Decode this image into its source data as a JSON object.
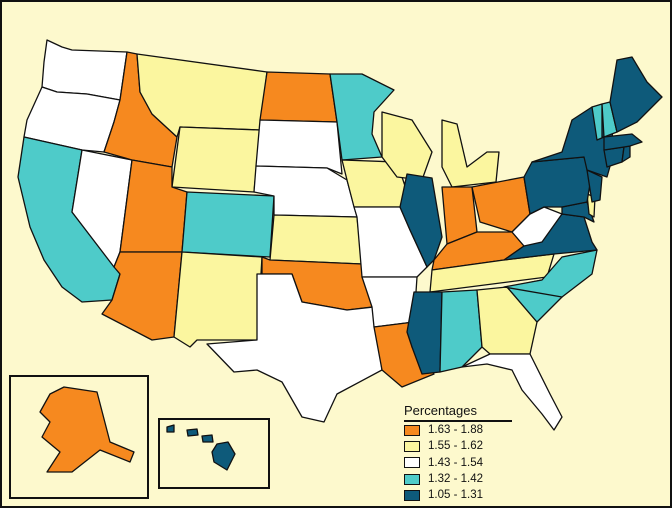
{
  "colors": {
    "orange": "#f6891f",
    "yellow": "#fbf69f",
    "white": "#ffffff",
    "teal": "#4ecbc9",
    "navy": "#0e5a7a"
  },
  "legend": {
    "title": "Percentages",
    "items": [
      {
        "label": "1.63 - 1.88",
        "color": "#f6891f"
      },
      {
        "label": "1.55 - 1.62",
        "color": "#fbf69f"
      },
      {
        "label": "1.43 - 1.54",
        "color": "#ffffff"
      },
      {
        "label": "1.32 - 1.42",
        "color": "#4ecbc9"
      },
      {
        "label": "1.05 - 1.31",
        "color": "#0e5a7a"
      }
    ]
  },
  "states": {
    "WA": "white",
    "OR": "white",
    "CA": "teal",
    "NV": "white",
    "ID": "orange",
    "MT": "yellow",
    "WY": "yellow",
    "UT": "orange",
    "AZ": "orange",
    "CO": "teal",
    "NM": "yellow",
    "ND": "orange",
    "SD": "white",
    "NE": "white",
    "KS": "yellow",
    "OK": "orange",
    "TX": "white",
    "MN": "teal",
    "IA": "yellow",
    "MO": "white",
    "AR": "white",
    "LA": "orange",
    "WI": "yellow",
    "IL": "navy",
    "MI": "yellow",
    "IN": "orange",
    "OH": "orange",
    "KY": "orange",
    "TN": "yellow",
    "MS": "navy",
    "AL": "teal",
    "GA": "yellow",
    "FL": "white",
    "SC": "teal",
    "NC": "teal",
    "VA": "navy",
    "WV": "white",
    "MD": "navy",
    "DE": "yellow",
    "PA": "navy",
    "NY": "navy",
    "NJ": "navy",
    "CT": "navy",
    "RI": "navy",
    "MA": "navy",
    "VT": "teal",
    "NH": "teal",
    "ME": "navy",
    "AK": "orange",
    "HI": "navy"
  }
}
